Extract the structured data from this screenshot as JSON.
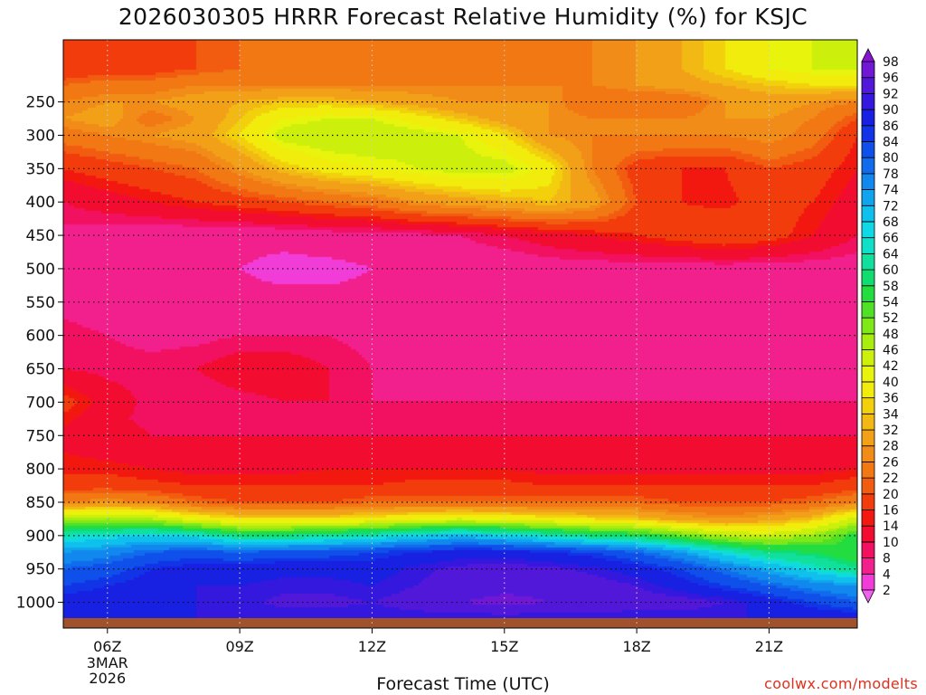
{
  "title": "2026030305 HRRR Forecast Relative Humidity (%) for KSJC",
  "xlabel": "Forecast Time (UTC)",
  "credit": "coolwx.com/modelts",
  "date_label": [
    "3MAR",
    "2026"
  ],
  "chart_data": {
    "type": "heatmap",
    "title": "2026030305 HRRR Forecast Relative Humidity (%) for KSJC",
    "xlabel": "Forecast Time (UTC)",
    "ylabel": "",
    "x_hours": [
      5,
      6,
      7,
      8,
      9,
      10,
      11,
      12,
      13,
      14,
      15,
      16,
      17,
      18,
      19,
      20,
      21,
      22,
      23
    ],
    "x_ticks": [
      {
        "hour": 6,
        "label": "06Z"
      },
      {
        "hour": 9,
        "label": "09Z"
      },
      {
        "hour": 12,
        "label": "12Z"
      },
      {
        "hour": 15,
        "label": "15Z"
      },
      {
        "hour": 18,
        "label": "18Z"
      },
      {
        "hour": 21,
        "label": "21Z"
      }
    ],
    "y_levels": [
      1025,
      1000,
      975,
      950,
      925,
      900,
      875,
      850,
      825,
      800,
      775,
      750,
      725,
      700,
      650,
      600,
      550,
      500,
      450,
      400,
      350,
      300,
      275,
      250,
      225,
      200
    ],
    "y_ticks": [
      250,
      300,
      350,
      400,
      450,
      500,
      550,
      600,
      650,
      700,
      750,
      800,
      850,
      900,
      950,
      1000
    ],
    "ylim": [
      1030,
      200
    ],
    "values": [
      [
        90,
        90,
        90,
        90,
        90,
        90,
        90,
        90,
        90,
        90,
        90,
        90,
        90,
        90,
        90,
        90,
        90,
        90,
        90
      ],
      [
        88,
        88,
        88,
        90,
        91,
        93,
        93,
        92,
        94,
        96,
        97,
        96,
        95,
        94,
        94,
        92,
        88,
        84,
        80
      ],
      [
        84,
        86,
        88,
        90,
        90,
        91,
        91,
        90,
        92,
        94,
        95,
        95,
        94,
        92,
        88,
        84,
        80,
        76,
        74
      ],
      [
        80,
        82,
        86,
        88,
        88,
        89,
        89,
        88,
        91,
        93,
        94,
        93,
        91,
        88,
        84,
        78,
        72,
        66,
        60
      ],
      [
        74,
        76,
        80,
        82,
        80,
        82,
        82,
        84,
        86,
        88,
        88,
        86,
        84,
        80,
        74,
        66,
        60,
        58,
        54
      ],
      [
        64,
        66,
        68,
        66,
        60,
        60,
        62,
        64,
        68,
        70,
        68,
        64,
        60,
        58,
        52,
        46,
        44,
        48,
        56
      ],
      [
        46,
        48,
        46,
        40,
        36,
        36,
        36,
        38,
        40,
        42,
        40,
        38,
        36,
        34,
        30,
        28,
        30,
        34,
        44
      ],
      [
        26,
        28,
        26,
        22,
        20,
        20,
        20,
        22,
        22,
        22,
        22,
        22,
        22,
        22,
        20,
        20,
        20,
        22,
        26
      ],
      [
        18,
        18,
        17,
        16,
        16,
        16,
        16,
        16,
        17,
        17,
        17,
        16,
        16,
        16,
        16,
        16,
        16,
        16,
        18
      ],
      [
        15,
        15,
        14,
        13,
        13,
        13,
        14,
        14,
        14,
        14,
        14,
        13,
        13,
        13,
        13,
        13,
        13,
        13,
        14
      ],
      [
        14,
        13,
        12,
        12,
        12,
        12,
        12,
        12,
        12,
        12,
        12,
        12,
        12,
        12,
        12,
        12,
        12,
        12,
        12
      ],
      [
        13,
        12,
        10,
        10,
        10,
        10,
        10,
        10,
        10,
        10,
        10,
        10,
        10,
        10,
        10,
        10,
        10,
        10,
        10
      ],
      [
        15,
        11,
        9,
        8,
        9,
        9,
        9,
        8,
        8,
        8,
        8,
        8,
        8,
        8,
        8,
        8,
        8,
        8,
        8
      ],
      [
        18,
        12,
        9,
        8,
        9,
        10,
        10,
        8,
        8,
        8,
        8,
        8,
        8,
        8,
        8,
        8,
        8,
        8,
        8
      ],
      [
        10,
        9,
        9,
        10,
        12,
        12,
        10,
        8,
        7,
        7,
        7,
        7,
        7,
        7,
        7,
        7,
        7,
        7,
        7
      ],
      [
        9,
        8,
        7,
        7,
        8,
        8,
        8,
        7,
        7,
        7,
        7,
        6,
        6,
        6,
        6,
        6,
        6,
        6,
        6
      ],
      [
        7,
        6,
        6,
        6,
        5,
        5,
        5,
        5,
        5,
        5,
        6,
        6,
        6,
        6,
        6,
        6,
        6,
        6,
        6
      ],
      [
        7,
        5,
        5,
        4,
        4,
        3,
        3,
        4,
        4,
        5,
        5,
        6,
        6,
        6,
        6,
        6,
        6,
        6,
        6
      ],
      [
        7,
        6,
        5,
        5,
        5,
        5,
        6,
        6,
        7,
        8,
        10,
        12,
        14,
        16,
        18,
        20,
        18,
        14,
        10
      ],
      [
        10,
        12,
        14,
        16,
        18,
        20,
        22,
        24,
        28,
        30,
        32,
        34,
        30,
        20,
        16,
        15,
        18,
        16,
        12
      ],
      [
        16,
        18,
        20,
        22,
        28,
        34,
        38,
        40,
        42,
        44,
        44,
        38,
        26,
        18,
        16,
        16,
        20,
        18,
        14
      ],
      [
        24,
        26,
        28,
        30,
        36,
        44,
        46,
        46,
        44,
        42,
        36,
        28,
        26,
        26,
        26,
        26,
        28,
        24,
        16
      ],
      [
        28,
        30,
        24,
        28,
        34,
        40,
        42,
        42,
        38,
        34,
        30,
        28,
        26,
        26,
        26,
        28,
        28,
        26,
        20
      ],
      [
        26,
        28,
        28,
        30,
        32,
        34,
        34,
        32,
        30,
        28,
        28,
        28,
        22,
        22,
        22,
        28,
        30,
        28,
        26
      ],
      [
        22,
        24,
        24,
        26,
        26,
        26,
        26,
        26,
        26,
        26,
        26,
        26,
        26,
        28,
        30,
        32,
        34,
        36,
        36
      ],
      [
        16,
        18,
        18,
        20,
        22,
        22,
        22,
        22,
        22,
        22,
        22,
        24,
        26,
        28,
        32,
        36,
        40,
        42,
        42
      ]
    ],
    "levels": [
      2,
      4,
      8,
      10,
      14,
      16,
      20,
      22,
      26,
      28,
      32,
      34,
      36,
      40,
      42,
      46,
      48,
      52,
      54,
      58,
      60,
      64,
      66,
      68,
      72,
      74,
      78,
      80,
      84,
      86,
      90,
      92,
      96,
      98
    ],
    "colorbar_colors": [
      "#f23cd8",
      "#f2208c",
      "#f21060",
      "#f20c30",
      "#f21810",
      "#f23c0c",
      "#f25c10",
      "#f27814",
      "#f28c18",
      "#f2a018",
      "#f2b814",
      "#f2d00c",
      "#f2ec0c",
      "#e8f40c",
      "#ccf00c",
      "#a8ec10",
      "#80e818",
      "#50e028",
      "#22dc40",
      "#10dc70",
      "#10e09c",
      "#10e0c8",
      "#10d8e4",
      "#10c0ec",
      "#10a4ee",
      "#1088ee",
      "#106cec",
      "#1050ea",
      "#1034e6",
      "#1820e2",
      "#3418de",
      "#5218da",
      "#7018d6"
    ],
    "colorbar_labels": [
      2,
      4,
      8,
      10,
      14,
      16,
      20,
      22,
      26,
      28,
      32,
      34,
      36,
      40,
      42,
      46,
      48,
      52,
      54,
      58,
      60,
      64,
      66,
      68,
      72,
      74,
      78,
      80,
      84,
      86,
      90,
      92,
      96,
      98
    ],
    "terrain_color": "#a0522d",
    "grid": true
  }
}
